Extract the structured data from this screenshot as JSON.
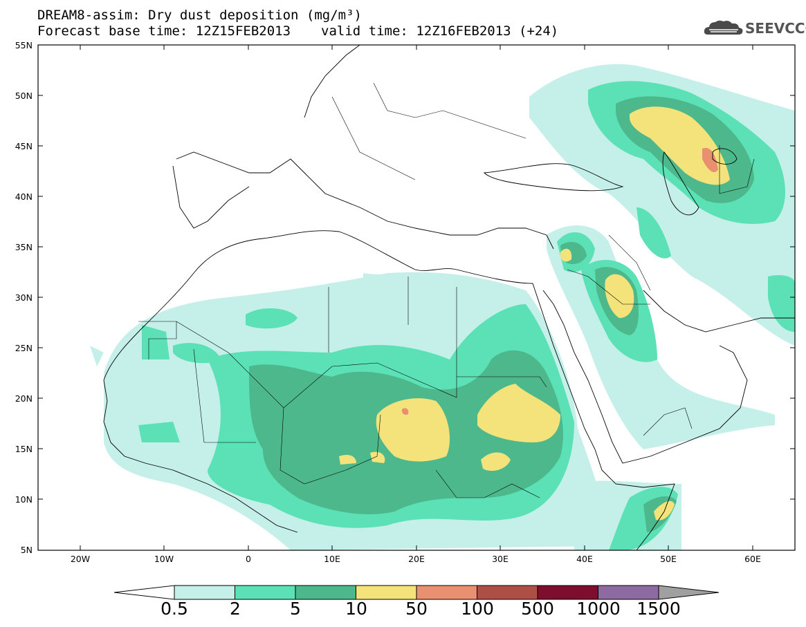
{
  "header": {
    "title_line1": "DREAM8-assim: Dry dust deposition (mg/m³)",
    "base_time": "Forecast base time: 12Z15FEB2013",
    "valid_time": "valid time: 12Z16FEB2013 (+24)"
  },
  "logo": {
    "text": "SEEVCCC",
    "icon": "cloud-icon"
  },
  "map": {
    "lon_range": [
      -25,
      65
    ],
    "lat_range": [
      5,
      55
    ],
    "lat_labels": [
      "55N",
      "50N",
      "45N",
      "40N",
      "35N",
      "30N",
      "25N",
      "20N",
      "15N",
      "10N",
      "5N"
    ],
    "lon_labels": [
      "20W",
      "10W",
      "0",
      "10E",
      "20E",
      "30E",
      "40E",
      "50E",
      "60E"
    ]
  },
  "colorbar": {
    "labels": [
      "0.5",
      "2",
      "5",
      "10",
      "50",
      "100",
      "500",
      "1000",
      "1500"
    ],
    "colors": [
      "#c5f0ea",
      "#5ce0b5",
      "#4cb88c",
      "#f4e27a",
      "#e89070",
      "#ad4f44",
      "#7d0e2d",
      "#8e6aa3"
    ],
    "under_color": "#ffffff",
    "over_color": "#a0a0a0"
  }
}
